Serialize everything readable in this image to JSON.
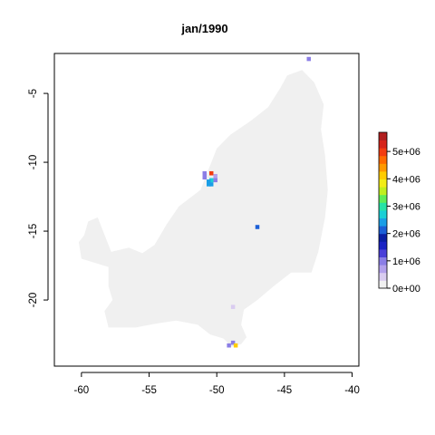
{
  "chart_data": {
    "type": "heatmap",
    "title": "jan/1990",
    "xlabel": "",
    "ylabel": "",
    "xlim": [
      -62,
      -39.5
    ],
    "ylim": [
      -24.8,
      -2.1
    ],
    "x_ticks": [
      -60,
      -55,
      -50,
      -45,
      -40
    ],
    "x_tick_labels": [
      "-60",
      "-55",
      "-50",
      "-45",
      "-40"
    ],
    "y_ticks": [
      -5,
      -10,
      -15,
      -20
    ],
    "y_tick_labels": [
      "-5",
      "-10",
      "-15",
      "-20"
    ],
    "grid": false,
    "background_color": "#f0f0f0",
    "region_outline": [
      [
        -57.8,
        -16.5
      ],
      [
        -56.5,
        -16.2
      ],
      [
        -55.5,
        -16.6
      ],
      [
        -54.6,
        -16.0
      ],
      [
        -53.7,
        -14.5
      ],
      [
        -52.8,
        -13.2
      ],
      [
        -51.2,
        -12.0
      ],
      [
        -50.6,
        -10.5
      ],
      [
        -50.0,
        -9.0
      ],
      [
        -49.0,
        -8.0
      ],
      [
        -47.5,
        -7.0
      ],
      [
        -46.2,
        -6.0
      ],
      [
        -45.3,
        -4.6
      ],
      [
        -44.8,
        -3.7
      ],
      [
        -43.7,
        -3.3
      ],
      [
        -42.8,
        -4.2
      ],
      [
        -42.1,
        -5.8
      ],
      [
        -42.3,
        -7.6
      ],
      [
        -42.0,
        -9.5
      ],
      [
        -41.8,
        -12.0
      ],
      [
        -42.0,
        -14.0
      ],
      [
        -42.5,
        -16.5
      ],
      [
        -43.0,
        -18.0
      ],
      [
        -44.5,
        -18.0
      ],
      [
        -45.8,
        -19.0
      ],
      [
        -47.0,
        -20.0
      ],
      [
        -48.0,
        -20.7
      ],
      [
        -48.2,
        -21.8
      ],
      [
        -47.8,
        -22.7
      ],
      [
        -48.2,
        -23.2
      ],
      [
        -48.9,
        -23.4
      ],
      [
        -49.5,
        -22.8
      ],
      [
        -50.5,
        -22.5
      ],
      [
        -51.4,
        -21.8
      ],
      [
        -53.0,
        -21.5
      ],
      [
        -54.4,
        -21.7
      ],
      [
        -56.0,
        -22.0
      ],
      [
        -58.0,
        -22.0
      ],
      [
        -58.3,
        -20.8
      ],
      [
        -57.7,
        -20.0
      ],
      [
        -58.0,
        -19.0
      ],
      [
        -58.0,
        -17.6
      ],
      [
        -60.0,
        -17.0
      ],
      [
        -60.2,
        -15.8
      ],
      [
        -59.8,
        -15.3
      ],
      [
        -59.5,
        -14.3
      ],
      [
        -58.8,
        -14.0
      ],
      [
        -58.4,
        -15.0
      ],
      [
        -57.8,
        -16.5
      ]
    ],
    "cell_size": [
      0.3,
      0.3
    ],
    "cells": [
      {
        "x": -43.2,
        "y": -2.5,
        "value": 900000
      },
      {
        "x": -50.9,
        "y": -10.8,
        "value": 1100000
      },
      {
        "x": -50.9,
        "y": -11.1,
        "value": 1100000
      },
      {
        "x": -50.4,
        "y": -10.8,
        "value": 5000000
      },
      {
        "x": -50.1,
        "y": -11.0,
        "value": 800000
      },
      {
        "x": -50.1,
        "y": -11.3,
        "value": 1000000
      },
      {
        "x": -50.4,
        "y": -11.3,
        "value": 2700000
      },
      {
        "x": -50.6,
        "y": -11.4,
        "value": 2300000
      },
      {
        "x": -50.6,
        "y": -11.6,
        "value": 2400000
      },
      {
        "x": -50.4,
        "y": -11.6,
        "value": 2300000
      },
      {
        "x": -47.0,
        "y": -14.7,
        "value": 2100000
      },
      {
        "x": -48.8,
        "y": -20.5,
        "value": 500000
      },
      {
        "x": -48.8,
        "y": -23.1,
        "value": 1100000
      },
      {
        "x": -49.1,
        "y": -23.3,
        "value": 1000000
      },
      {
        "x": -48.6,
        "y": -23.3,
        "value": 4200000
      }
    ],
    "colorbar": {
      "min": 0,
      "max": 5700000,
      "ticks": [
        0,
        1000000,
        2000000,
        3000000,
        4000000,
        5000000
      ],
      "tick_labels": [
        "0e+00",
        "1e+06",
        "2e+06",
        "3e+06",
        "4e+06",
        "5e+06"
      ],
      "colors": [
        "#f0f0f0",
        "#d9ccf0",
        "#b3a1ec",
        "#8b7ee6",
        "#4a3fd9",
        "#1a23c4",
        "#0a1fa3",
        "#1c5fd6",
        "#1a9ee6",
        "#1acfd6",
        "#26e3a6",
        "#5eed57",
        "#c0ef1e",
        "#f2ec17",
        "#ffcc00",
        "#ff9900",
        "#ff6a00",
        "#f23c10",
        "#d6241a",
        "#b21f1f"
      ]
    }
  }
}
